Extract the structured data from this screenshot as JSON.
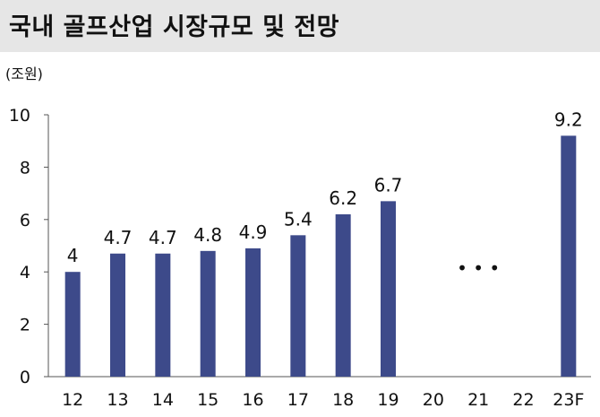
{
  "title": "국내 골프산업 시장규모 및 전망",
  "chart_data": {
    "type": "bar",
    "title": "국내 골프산업 시장규모 및 전망",
    "unit_label": "(조원)",
    "categories": [
      "12",
      "13",
      "14",
      "15",
      "16",
      "17",
      "18",
      "19",
      "20",
      "21",
      "22",
      "23F"
    ],
    "values": [
      4.0,
      4.7,
      4.7,
      4.8,
      4.9,
      5.4,
      6.2,
      6.7,
      null,
      null,
      null,
      9.2
    ],
    "data_labels": [
      "4",
      "4.7",
      "4.7",
      "4.8",
      "4.9",
      "5.4",
      "6.2",
      "6.7",
      "",
      "",
      "",
      "9.2"
    ],
    "ylim": [
      0,
      10
    ],
    "yticks": [
      "0",
      "2",
      "4",
      "6",
      "8",
      "10"
    ],
    "gap_marker": "• • •",
    "grid": false,
    "bar_color": "#3d4a8a"
  }
}
